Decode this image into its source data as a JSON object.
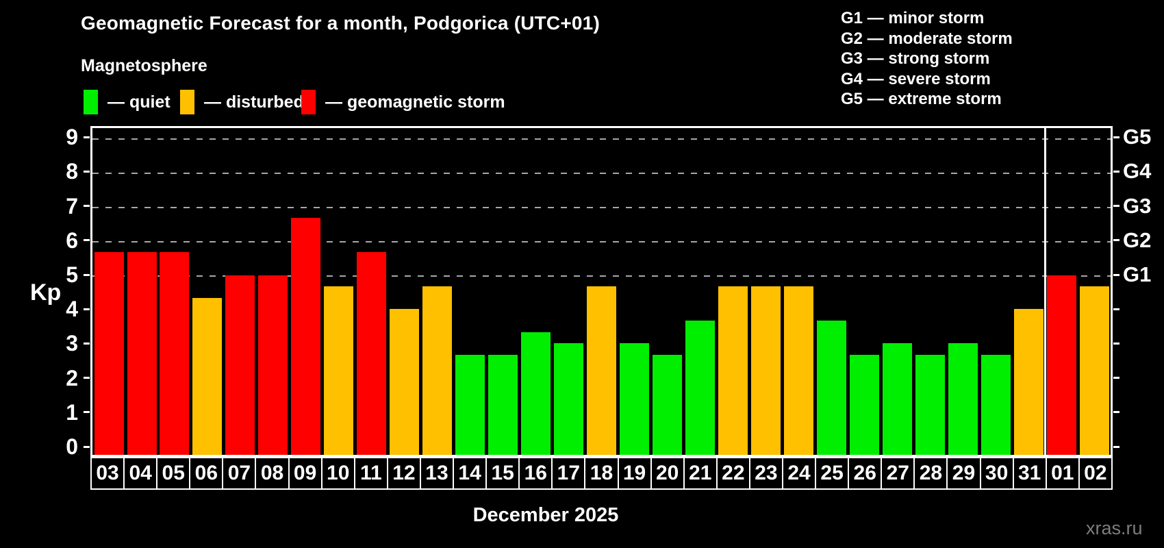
{
  "watermark": "xras.ru",
  "chart_data": {
    "type": "bar",
    "title": "Geomagnetic Forecast for a month, Podgorica (UTC+01)",
    "subtitle": "Magnetosphere",
    "xlabel": "December 2025",
    "ylabel": "Kp",
    "ylim": [
      -0.3,
      9.35
    ],
    "grid": "dashed horizontal lines at Kp 5-9 (G1-G5) only",
    "legend_position": "top-left",
    "categories": [
      "03",
      "04",
      "05",
      "06",
      "07",
      "08",
      "09",
      "10",
      "11",
      "12",
      "13",
      "14",
      "15",
      "16",
      "17",
      "18",
      "19",
      "20",
      "21",
      "22",
      "23",
      "24",
      "25",
      "26",
      "27",
      "28",
      "29",
      "30",
      "31",
      "01",
      "02"
    ],
    "values": [
      5.67,
      5.67,
      5.67,
      4.33,
      5,
      5,
      6.67,
      4.67,
      5.67,
      4,
      4.67,
      2.67,
      2.67,
      3.33,
      3,
      4.67,
      3,
      2.67,
      3.67,
      4.67,
      4.67,
      4.67,
      3.67,
      2.67,
      3,
      2.67,
      3,
      2.67,
      4,
      5,
      4.67
    ],
    "status": [
      "storm",
      "storm",
      "storm",
      "disturbed",
      "storm",
      "storm",
      "storm",
      "disturbed",
      "storm",
      "disturbed",
      "disturbed",
      "quiet",
      "quiet",
      "quiet",
      "quiet",
      "disturbed",
      "quiet",
      "quiet",
      "quiet",
      "disturbed",
      "disturbed",
      "disturbed",
      "quiet",
      "quiet",
      "quiet",
      "quiet",
      "quiet",
      "quiet",
      "disturbed",
      "storm",
      "disturbed"
    ],
    "status_colors": {
      "quiet": "#00ee00",
      "disturbed": "#ffc000",
      "storm": "#ff0000"
    },
    "y_ticks": [
      0,
      1,
      2,
      3,
      4,
      5,
      6,
      7,
      8,
      9
    ],
    "grid_levels": [
      5,
      6,
      7,
      8,
      9
    ],
    "right_axis": [
      {
        "kp": 5,
        "label": "G1"
      },
      {
        "kp": 6,
        "label": "G2"
      },
      {
        "kp": 7,
        "label": "G3"
      },
      {
        "kp": 8,
        "label": "G4"
      },
      {
        "kp": 9,
        "label": "G5"
      }
    ],
    "legend": [
      {
        "status": "quiet",
        "label": "— quiet"
      },
      {
        "status": "disturbed",
        "label": "— disturbed"
      },
      {
        "status": "storm",
        "label": "— geomagnetic storm"
      }
    ],
    "g_scale_legend": [
      "G1 — minor storm",
      "G2 — moderate storm",
      "G3 — strong storm",
      "G4 — severe storm",
      "G5 — extreme storm"
    ],
    "month_separator_before_category": "01"
  }
}
